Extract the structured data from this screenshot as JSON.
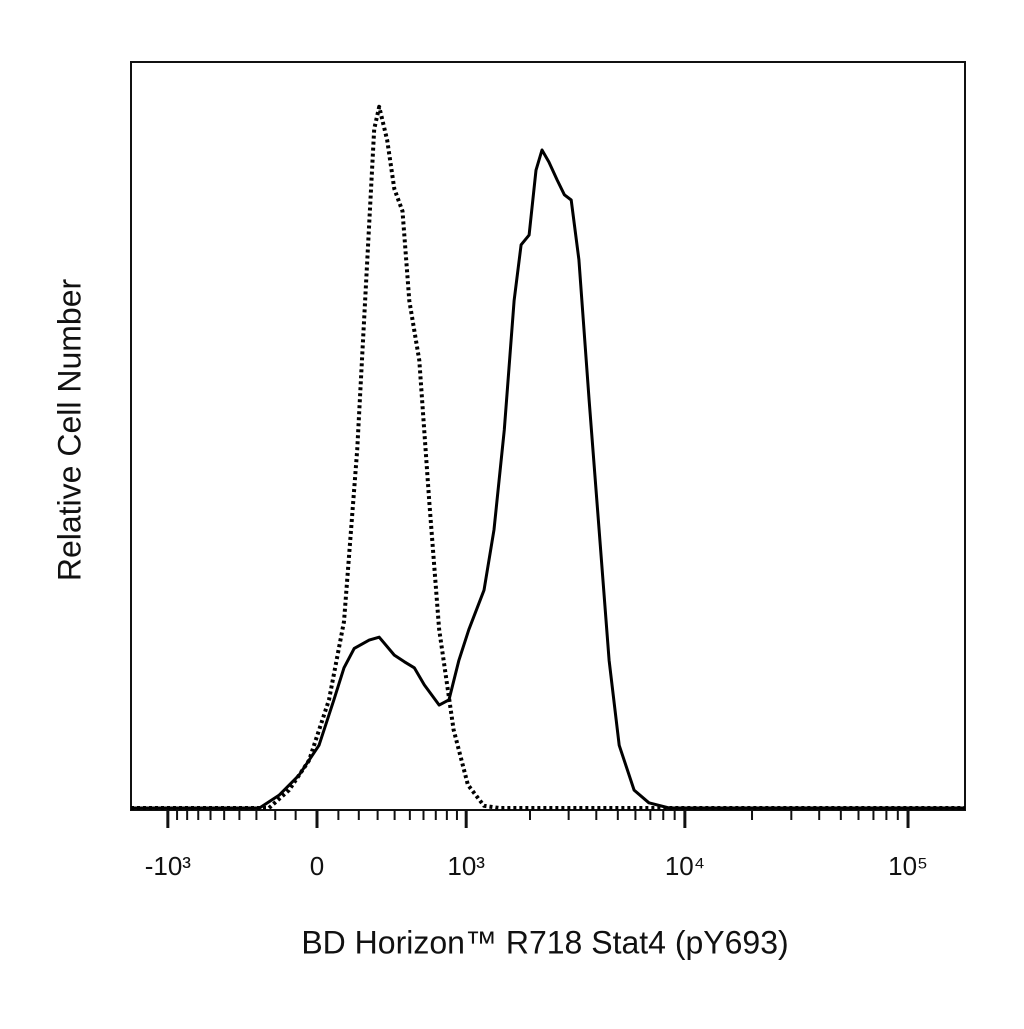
{
  "chart_data": {
    "type": "line",
    "x_label": "BD Horizon™ R718 Stat4 (pY693)",
    "y_label": "Relative Cell Number",
    "xlim": [
      -1500,
      180000
    ],
    "ylim": [
      0,
      100
    ],
    "x_scale": "biexponential",
    "xticks": [
      {
        "value": -1000,
        "label": "-10³"
      },
      0,
      {
        "value": 1000,
        "label": "10³"
      },
      {
        "value": 10000,
        "label": "10⁴"
      },
      {
        "value": 100000,
        "label": "10⁵"
      }
    ],
    "minor_xticks": [
      -900,
      -800,
      -700,
      -600,
      -500,
      -400,
      -300,
      -200,
      -100,
      100,
      200,
      300,
      400,
      500,
      600,
      700,
      800,
      900,
      2000,
      3000,
      4000,
      5000,
      6000,
      7000,
      8000,
      9000,
      20000,
      30000,
      40000,
      50000,
      60000,
      70000,
      80000,
      90000
    ],
    "series": [
      {
        "color": "#000000",
        "line_style": "dotted",
        "x": [
          -1500,
          -232,
          -132,
          -37,
          56,
          127,
          192,
          243,
          281,
          309,
          355,
          398,
          450,
          496,
          568,
          646,
          729,
          866,
          1020,
          1220,
          1440,
          180000
        ],
        "values": [
          0,
          0,
          2.4,
          6.4,
          14.5,
          25,
          48,
          73,
          91,
          94,
          89.5,
          83,
          80,
          68,
          60,
          41,
          24,
          10.5,
          3.1,
          0.3,
          0,
          0
        ]
      },
      {
        "color": "#000000",
        "line_style": "solid",
        "x": [
          -1500,
          -283,
          -181,
          -84,
          9,
          79,
          127,
          177,
          254,
          309,
          398,
          463,
          531,
          606,
          730,
          820,
          920,
          1030,
          1220,
          1360,
          1520,
          1690,
          1820,
          1980,
          2130,
          2270,
          2440,
          2660,
          2870,
          3080,
          3340,
          3710,
          4120,
          4570,
          5070,
          5920,
          6900,
          8500,
          180000
        ],
        "values": [
          0,
          0,
          1.7,
          4.4,
          8.4,
          14.5,
          18.8,
          21.4,
          22.5,
          22.9,
          20.5,
          19.6,
          18.8,
          16.5,
          13.8,
          14.5,
          19.8,
          23.9,
          29.2,
          37.3,
          50.7,
          68,
          75.5,
          76.8,
          85.5,
          88.2,
          86.6,
          84.2,
          82.2,
          81.5,
          73.5,
          54.7,
          37.3,
          19.8,
          8.4,
          2.4,
          0.7,
          0,
          0
        ]
      }
    ]
  }
}
